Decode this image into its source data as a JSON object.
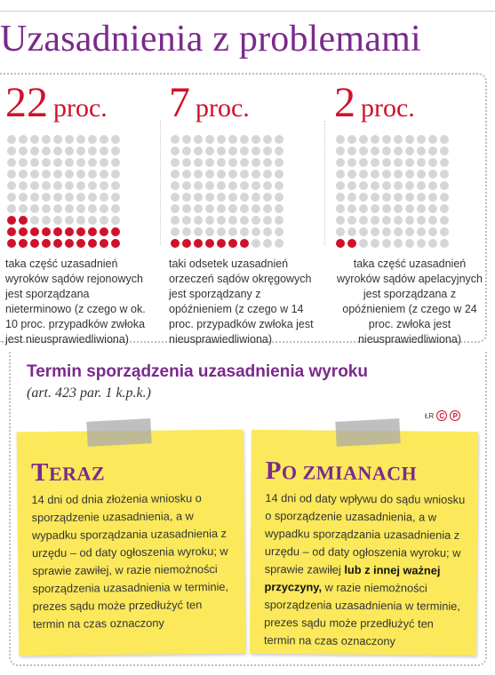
{
  "title": "Uzasadnienia z problemami",
  "stats": [
    {
      "number": "22",
      "unit": "proc.",
      "total_dots": 100,
      "filled_dots": 22,
      "description": "taka część uzasadnień wyroków sądów rejonowych jest sporządzana nieterminowo (z czego w ok. 10 proc. przypadków zwłoka jest nieusprawiedliwiona)"
    },
    {
      "number": "7",
      "unit": "proc.",
      "total_dots": 100,
      "filled_dots": 7,
      "description": "taki odsetek uzasadnień orzeczeń sądów okręgowych jest sporządzany z opóźnieniem (z czego w 14 proc. przypadków zwłoka jest nieusprawiedliwiona)"
    },
    {
      "number": "2",
      "unit": "proc.",
      "total_dots": 100,
      "filled_dots": 2,
      "description": "taka część uzasadnień wyroków sądów apelacyjnych jest sporządzana z opóźnieniem (z czego w 24 proc. zwłoka jest nieusprawiedliwiona)"
    }
  ],
  "subheading": "Termin sporządzenia uzasadnienia wyroku",
  "citation": "(art. 423 par. 1 k.p.k.)",
  "credit": {
    "text": "ŁR",
    "mark1": "C",
    "mark2": "P"
  },
  "notes": {
    "now": {
      "title_lead": "T",
      "title_rest": "ERAZ",
      "body": "14 dni od dnia złożenia wniosku o sporządzenie uzasadnienia, a w wypadku sporządzania uzasadnienia z urzędu – od daty ogłoszenia wyroku; w sprawie zawiłej, w razie niemożności sporządzenia uzasadnienia w terminie, prezes sądu może przedłużyć ten termin na czas oznaczony"
    },
    "after": {
      "title_lead": "P",
      "title_rest": "O ZMIANACH",
      "body_before": "14 dni od daty wpływu do sądu wniosku o sporządzenie uzasadnienia, a w wypadku sporządzania uzasadnienia z urzędu – od daty ogłoszenia wyroku; w sprawie zawiłej ",
      "body_bold": "lub z innej ważnej przyczyny,",
      "body_after": " w razie niemożności sporządzenia uzasadnienia w terminie, prezes sądu może przedłużyć ten termin na czas oznaczony"
    }
  },
  "colors": {
    "purple": "#7a2a8c",
    "red": "#d0112b",
    "dot_gray": "#d6d6d6",
    "note_yellow": "#fbe95b"
  }
}
